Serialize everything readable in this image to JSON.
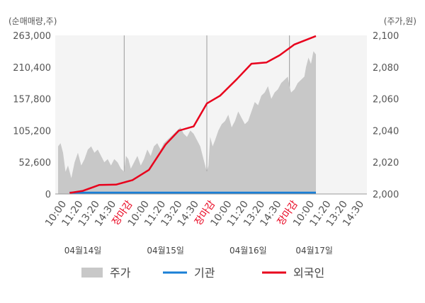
{
  "chart_data": {
    "type": "area",
    "left_unit_label": "(순매매량,주)",
    "right_unit_label": "(주가,원)",
    "left_axis": {
      "ticks": [
        "0",
        "52,600",
        "105,200",
        "157,800",
        "210,400",
        "263,000"
      ],
      "range": [
        0,
        263000
      ]
    },
    "right_axis": {
      "ticks": [
        "2,000",
        "2,020",
        "2,040",
        "2,060",
        "2,080",
        "2,100"
      ],
      "range": [
        2000,
        2100
      ]
    },
    "x_ticks": [
      {
        "label": "10:00",
        "color": "#555555"
      },
      {
        "label": "11:20",
        "color": "#555555"
      },
      {
        "label": "13:20",
        "color": "#555555"
      },
      {
        "label": "14:30",
        "color": "#555555"
      },
      {
        "label": "장마감",
        "color": "#e8001c"
      },
      {
        "label": "10:00",
        "color": "#555555"
      },
      {
        "label": "11:20",
        "color": "#555555"
      },
      {
        "label": "13:20",
        "color": "#555555"
      },
      {
        "label": "14:30",
        "color": "#555555"
      },
      {
        "label": "장마감",
        "color": "#e8001c"
      },
      {
        "label": "10:00",
        "color": "#555555"
      },
      {
        "label": "11:20",
        "color": "#555555"
      },
      {
        "label": "13:20",
        "color": "#555555"
      },
      {
        "label": "14:30",
        "color": "#555555"
      },
      {
        "label": "장마감",
        "color": "#e8001c"
      },
      {
        "label": "10:00",
        "color": "#555555"
      },
      {
        "label": "11:20",
        "color": "#555555"
      },
      {
        "label": "13:20",
        "color": "#555555"
      },
      {
        "label": "14:30",
        "color": "#555555"
      }
    ],
    "day_dividers_after_tick": [
      4,
      9,
      14
    ],
    "dates": [
      "04월14일",
      "04월15일",
      "04월16일",
      "04월17일"
    ],
    "date_tick_index": [
      1.5,
      6.5,
      11.5,
      15.5
    ],
    "series": [
      {
        "name": "주가",
        "kind": "area",
        "axis": "right",
        "color": "#c8c8c8",
        "x": [
          0,
          0.15,
          0.3,
          0.45,
          0.6,
          0.8,
          1.0,
          1.2,
          1.4,
          1.6,
          1.8,
          2.0,
          2.2,
          2.4,
          2.6,
          2.8,
          3.0,
          3.2,
          3.4,
          3.6,
          3.8,
          4.0,
          4.1,
          4.25,
          4.4,
          4.6,
          4.8,
          5.0,
          5.2,
          5.4,
          5.6,
          5.8,
          6.0,
          6.2,
          6.4,
          6.6,
          6.8,
          7.0,
          7.2,
          7.4,
          7.6,
          7.8,
          8.0,
          8.2,
          8.4,
          8.6,
          8.8,
          9.0,
          9.1,
          9.2,
          9.35,
          9.5,
          9.7,
          9.9,
          10.1,
          10.3,
          10.5,
          10.7,
          10.9,
          11.1,
          11.3,
          11.5,
          11.7,
          11.9,
          12.1,
          12.3,
          12.5,
          12.7,
          12.9,
          13.1,
          13.3,
          13.5,
          13.7,
          13.9,
          14.0,
          14.1,
          14.3,
          14.5,
          14.7,
          14.9,
          15.0,
          15.15,
          15.3,
          15.45,
          15.6
        ],
        "values": [
          2030,
          2032,
          2026,
          2014,
          2018,
          2010,
          2020,
          2026,
          2018,
          2022,
          2028,
          2030,
          2026,
          2028,
          2024,
          2020,
          2022,
          2018,
          2022,
          2020,
          2016,
          2014,
          2024,
          2022,
          2016,
          2020,
          2024,
          2018,
          2022,
          2028,
          2024,
          2030,
          2032,
          2028,
          2032,
          2034,
          2036,
          2038,
          2040,
          2042,
          2038,
          2036,
          2040,
          2038,
          2034,
          2030,
          2022,
          2014,
          2018,
          2036,
          2030,
          2034,
          2040,
          2044,
          2046,
          2050,
          2042,
          2046,
          2052,
          2048,
          2044,
          2046,
          2052,
          2058,
          2056,
          2062,
          2064,
          2068,
          2060,
          2064,
          2066,
          2070,
          2072,
          2074,
          2068,
          2064,
          2066,
          2070,
          2072,
          2074,
          2080,
          2086,
          2082,
          2090,
          2088
        ]
      },
      {
        "name": "기관",
        "kind": "line",
        "axis": "left",
        "color": "#1a7fd6",
        "x": [
          0.7,
          15.6
        ],
        "values": [
          2000,
          2000
        ]
      },
      {
        "name": "외국인",
        "kind": "line",
        "axis": "left",
        "color": "#e8001c",
        "x": [
          0.7,
          1.5,
          2.5,
          3.5,
          4.5,
          5.5,
          6.5,
          7.3,
          8.2,
          9.0,
          9.8,
          10.8,
          11.7,
          12.6,
          13.4,
          14.3,
          15.6
        ],
        "values": [
          1800,
          5200,
          15000,
          15500,
          23000,
          40000,
          82000,
          105000,
          112000,
          150000,
          163000,
          190000,
          216000,
          218000,
          230000,
          248000,
          262000
        ]
      }
    ],
    "legend": [
      {
        "label": "주가",
        "color": "#c8c8c8",
        "shape": "box"
      },
      {
        "label": "기관",
        "color": "#1a7fd6",
        "shape": "line"
      },
      {
        "label": "외국인",
        "color": "#e8001c",
        "shape": "line"
      }
    ]
  }
}
